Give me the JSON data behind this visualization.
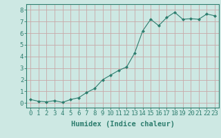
{
  "x": [
    0,
    1,
    2,
    3,
    4,
    5,
    6,
    7,
    8,
    9,
    10,
    11,
    12,
    13,
    14,
    15,
    16,
    17,
    18,
    19,
    20,
    21,
    22,
    23
  ],
  "y": [
    0.3,
    0.15,
    0.1,
    0.2,
    0.05,
    0.3,
    0.45,
    0.9,
    1.25,
    2.0,
    2.4,
    2.8,
    3.1,
    4.3,
    6.2,
    7.2,
    6.65,
    7.35,
    7.8,
    7.2,
    7.25,
    7.2,
    7.65,
    7.5
  ],
  "line_color": "#2d7d6e",
  "marker": "D",
  "marker_size": 2.0,
  "bg_color": "#cde8e3",
  "grid_color": "#c8a8a8",
  "axis_color": "#2d7d6e",
  "xlabel": "Humidex (Indice chaleur)",
  "xlabel_fontsize": 7.5,
  "tick_fontsize": 6.5,
  "ylim": [
    -0.4,
    8.5
  ],
  "xlim": [
    -0.5,
    23.5
  ],
  "yticks": [
    0,
    1,
    2,
    3,
    4,
    5,
    6,
    7,
    8
  ],
  "xticks": [
    0,
    1,
    2,
    3,
    4,
    5,
    6,
    7,
    8,
    9,
    10,
    11,
    12,
    13,
    14,
    15,
    16,
    17,
    18,
    19,
    20,
    21,
    22,
    23
  ]
}
